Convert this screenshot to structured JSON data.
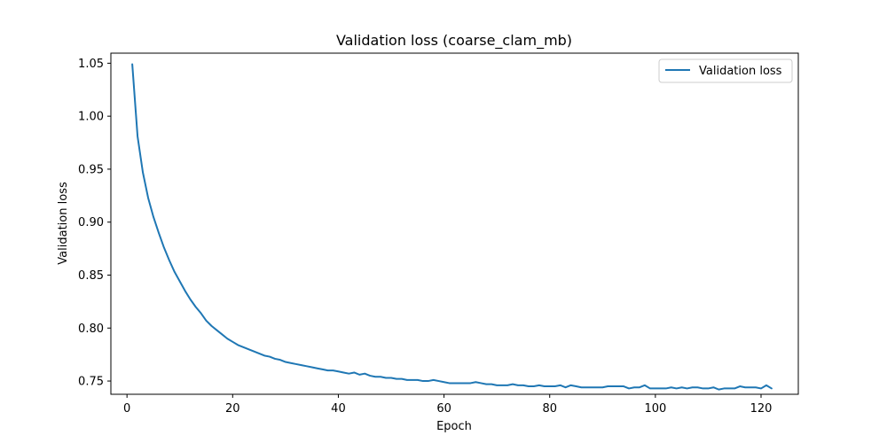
{
  "chart_data": {
    "type": "line",
    "title": "Validation loss (coarse_clam_mb)",
    "xlabel": "Epoch",
    "ylabel": "Validation loss",
    "xlim": [
      -3.05,
      127.05
    ],
    "ylim": [
      0.7375,
      1.0595
    ],
    "xticks": [
      0,
      20,
      40,
      60,
      80,
      100,
      120
    ],
    "xtick_labels": [
      "0",
      "20",
      "40",
      "60",
      "80",
      "100",
      "120"
    ],
    "yticks": [
      0.75,
      0.8,
      0.85,
      0.9,
      0.95,
      1.0,
      1.05
    ],
    "ytick_labels": [
      "0.75",
      "0.80",
      "0.85",
      "0.90",
      "0.95",
      "1.00",
      "1.05"
    ],
    "grid": false,
    "legend_position": "top-right",
    "series": [
      {
        "name": "Validation loss",
        "color": "#1f77b4",
        "x": [
          1,
          2,
          3,
          4,
          5,
          6,
          7,
          8,
          9,
          10,
          11,
          12,
          13,
          14,
          15,
          16,
          17,
          18,
          19,
          20,
          21,
          22,
          23,
          24,
          25,
          26,
          27,
          28,
          29,
          30,
          31,
          32,
          33,
          34,
          35,
          36,
          37,
          38,
          39,
          40,
          41,
          42,
          43,
          44,
          45,
          46,
          47,
          48,
          49,
          50,
          51,
          52,
          53,
          54,
          55,
          56,
          57,
          58,
          59,
          60,
          61,
          62,
          63,
          64,
          65,
          66,
          67,
          68,
          69,
          70,
          71,
          72,
          73,
          74,
          75,
          76,
          77,
          78,
          79,
          80,
          81,
          82,
          83,
          84,
          85,
          86,
          87,
          88,
          89,
          90,
          91,
          92,
          93,
          94,
          95,
          96,
          97,
          98,
          99,
          100,
          101,
          102,
          103,
          104,
          105,
          106,
          107,
          108,
          109,
          110,
          111,
          112,
          113,
          114,
          115,
          116,
          117,
          118,
          119,
          120,
          121,
          122
        ],
        "values": [
          1.049,
          0.981,
          0.947,
          0.923,
          0.905,
          0.89,
          0.876,
          0.864,
          0.853,
          0.844,
          0.835,
          0.827,
          0.82,
          0.814,
          0.807,
          0.802,
          0.798,
          0.794,
          0.79,
          0.787,
          0.784,
          0.782,
          0.78,
          0.778,
          0.776,
          0.774,
          0.773,
          0.771,
          0.77,
          0.768,
          0.767,
          0.766,
          0.765,
          0.764,
          0.763,
          0.762,
          0.761,
          0.76,
          0.76,
          0.759,
          0.758,
          0.757,
          0.758,
          0.756,
          0.757,
          0.755,
          0.754,
          0.754,
          0.753,
          0.753,
          0.752,
          0.752,
          0.751,
          0.751,
          0.751,
          0.75,
          0.75,
          0.751,
          0.75,
          0.749,
          0.748,
          0.748,
          0.748,
          0.748,
          0.748,
          0.749,
          0.748,
          0.747,
          0.747,
          0.746,
          0.746,
          0.746,
          0.747,
          0.746,
          0.746,
          0.745,
          0.745,
          0.746,
          0.745,
          0.745,
          0.745,
          0.746,
          0.744,
          0.746,
          0.745,
          0.744,
          0.744,
          0.744,
          0.744,
          0.744,
          0.745,
          0.745,
          0.745,
          0.745,
          0.743,
          0.744,
          0.744,
          0.746,
          0.743,
          0.743,
          0.743,
          0.743,
          0.744,
          0.743,
          0.744,
          0.743,
          0.744,
          0.744,
          0.743,
          0.743,
          0.744,
          0.742,
          0.743,
          0.743,
          0.743,
          0.745,
          0.744,
          0.744,
          0.744,
          0.743,
          0.746,
          0.743
        ]
      }
    ]
  }
}
